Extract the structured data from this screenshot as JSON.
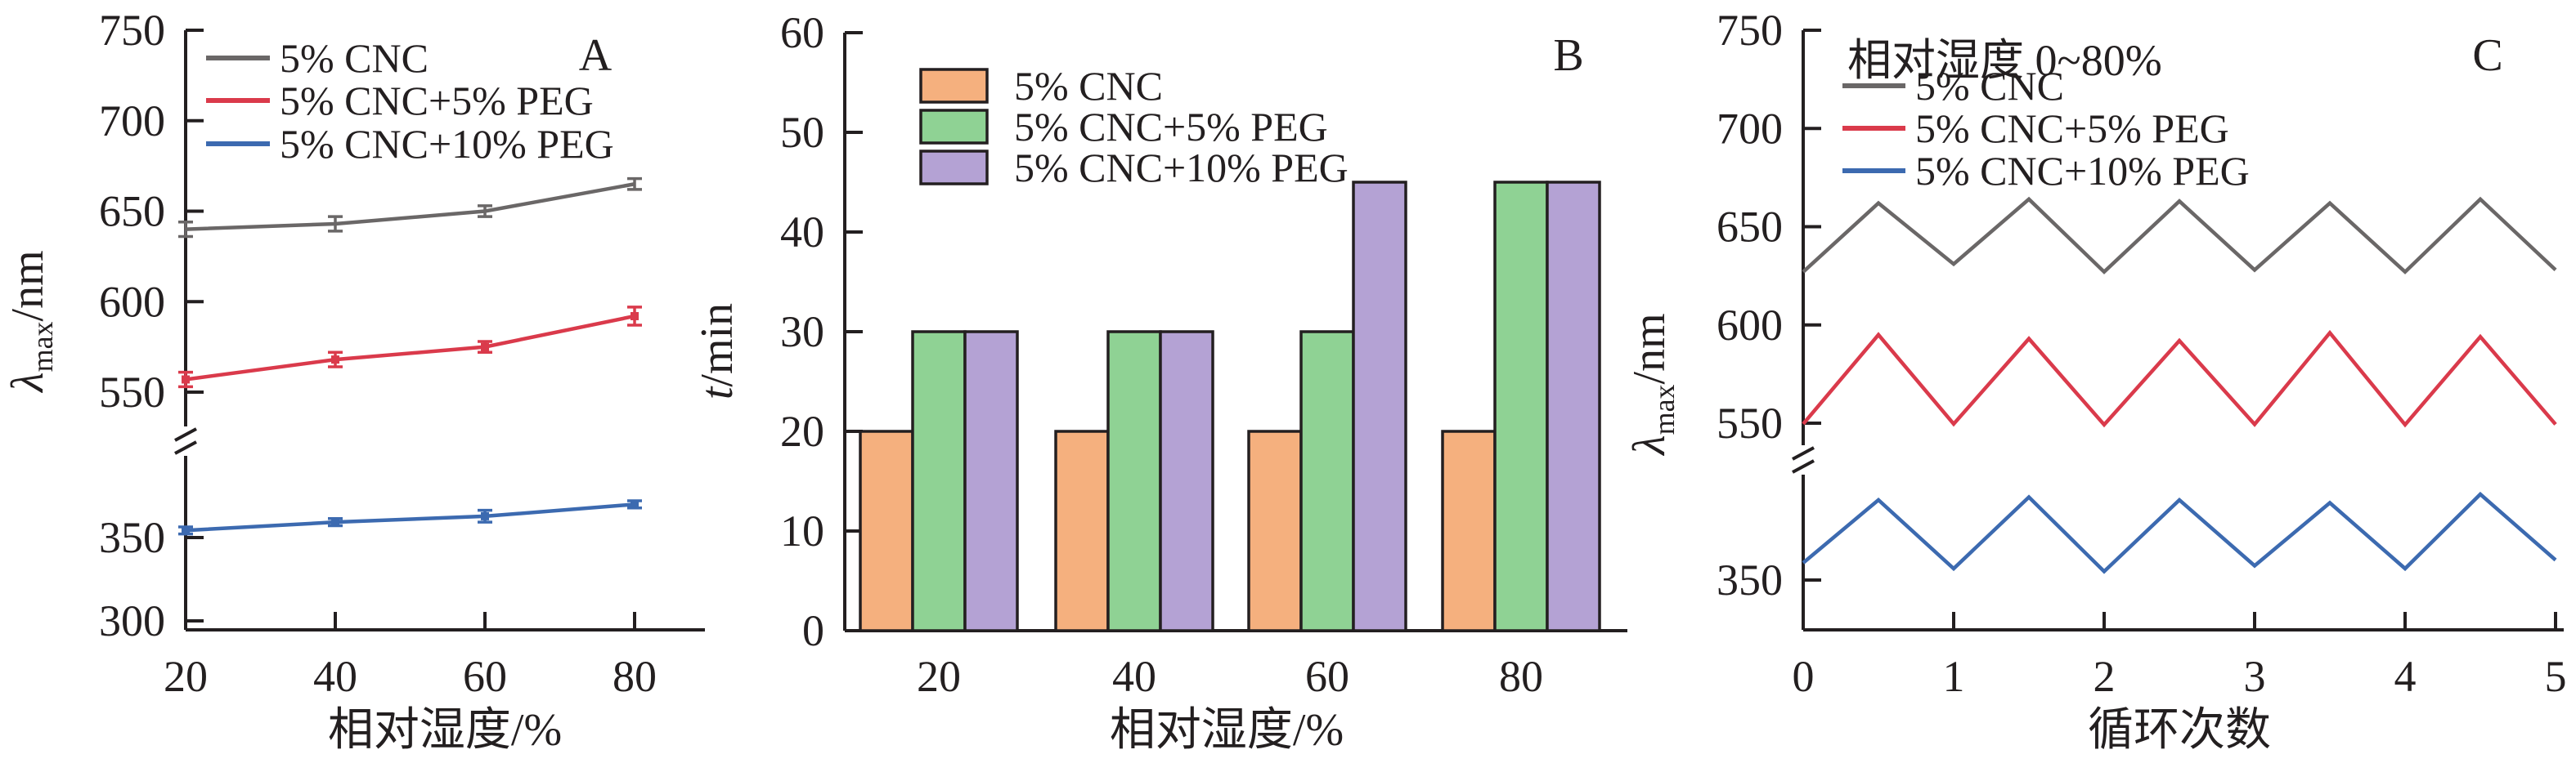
{
  "figure": {
    "background": "#ffffff",
    "axis_color": "#231F20"
  },
  "colors": {
    "gray": "#6A6767",
    "red": "#DA3A4B",
    "blue": "#3C6AB0",
    "orange": "#F5B07E",
    "green": "#8FD294",
    "purple": "#B4A2D4",
    "axis": "#231F20"
  },
  "chart_data": [
    {
      "type": "line",
      "panel_label": "A",
      "xlabel": "相对湿度/%",
      "ylabel": "λmax/nm",
      "ylabel_symbol": "λ",
      "ylabel_sub": "max",
      "ylabel_unit": "/nm",
      "x": [
        20,
        40,
        60,
        80
      ],
      "x_ticks": [
        20,
        40,
        60,
        80
      ],
      "y_ticks_top": [
        750,
        700,
        650,
        600,
        550
      ],
      "y_ticks_bottom": [
        350,
        300
      ],
      "axis_break": true,
      "y_break_between": [
        550,
        350
      ],
      "legend_position": "top-left-inside",
      "grid": false,
      "series": [
        {
          "name": "5% CNC",
          "color_key": "gray",
          "values": [
            640,
            643,
            650,
            665
          ],
          "errors": [
            4,
            4,
            3,
            3
          ],
          "marker": false
        },
        {
          "name": "5% CNC+5% PEG",
          "color_key": "red",
          "values": [
            557,
            568,
            575,
            592
          ],
          "errors": [
            4,
            4,
            3,
            5
          ],
          "marker": true
        },
        {
          "name": "5% CNC+10% PEG",
          "color_key": "blue",
          "values": [
            356,
            363,
            368,
            378
          ],
          "errors": [
            3,
            3,
            5,
            3
          ],
          "marker": true
        }
      ]
    },
    {
      "type": "bar",
      "panel_label": "B",
      "xlabel": "相对湿度/%",
      "ylabel": "t/min",
      "ylabel_symbol": "t",
      "ylabel_sub": "",
      "ylabel_unit": "/min",
      "categories": [
        20,
        40,
        60,
        80
      ],
      "y_ticks": [
        0,
        10,
        20,
        30,
        40,
        50,
        60
      ],
      "ylim": [
        0,
        60
      ],
      "legend_position": "top-left-inside",
      "grid": false,
      "series": [
        {
          "name": "5% CNC",
          "color_key": "orange",
          "values": [
            20,
            20,
            20,
            20
          ]
        },
        {
          "name": "5% CNC+5% PEG",
          "color_key": "green",
          "values": [
            30,
            30,
            30,
            45
          ]
        },
        {
          "name": "5% CNC+10% PEG",
          "color_key": "purple",
          "values": [
            30,
            30,
            45,
            45
          ]
        }
      ]
    },
    {
      "type": "line",
      "panel_label": "C",
      "title": "相对湿度 0~80%",
      "xlabel": "循环次数",
      "ylabel": "λmax/nm",
      "ylabel_symbol": "λ",
      "ylabel_sub": "max",
      "ylabel_unit": "/nm",
      "x": [
        0,
        0.5,
        1,
        1.5,
        2,
        2.5,
        3,
        3.5,
        4,
        4.5,
        5
      ],
      "x_ticks": [
        0,
        1,
        2,
        3,
        4,
        5
      ],
      "y_ticks_top": [
        750,
        700,
        650,
        600,
        550
      ],
      "y_ticks_bottom": [
        350
      ],
      "axis_break": true,
      "y_break_between": [
        550,
        350
      ],
      "legend_position": "top-left-inside",
      "grid": false,
      "series": [
        {
          "name": "5% CNC",
          "color_key": "gray",
          "values": [
            627,
            662,
            631,
            664,
            627,
            663,
            628,
            662,
            627,
            664,
            628
          ],
          "marker": false
        },
        {
          "name": "5% CNC+5% PEG",
          "color_key": "red",
          "values": [
            548,
            595,
            548,
            593,
            546,
            592,
            547,
            596,
            546,
            594,
            547
          ],
          "marker": false
        },
        {
          "name": "5% CNC+10% PEG",
          "color_key": "blue",
          "values": [
            356,
            378,
            354,
            379,
            353,
            378,
            355,
            377,
            354,
            380,
            357
          ],
          "marker": false
        }
      ]
    }
  ]
}
